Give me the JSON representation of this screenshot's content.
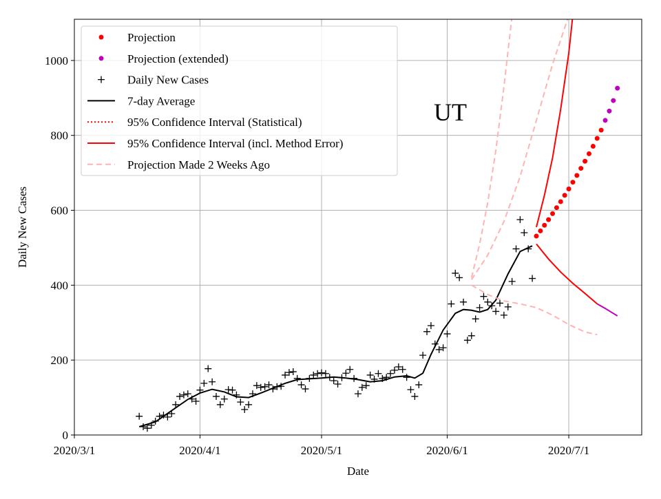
{
  "chart_data": {
    "type": "line",
    "xlabel": "Date",
    "ylabel": "Daily New Cases",
    "annotation": "UT",
    "xlim": [
      "2020-03-01",
      "2020-07-19"
    ],
    "xticks": [
      {
        "value": "2020-03-01",
        "label": "2020/3/1"
      },
      {
        "value": "2020-04-01",
        "label": "2020/4/1"
      },
      {
        "value": "2020-05-01",
        "label": "2020/5/1"
      },
      {
        "value": "2020-06-01",
        "label": "2020/6/1"
      },
      {
        "value": "2020-07-01",
        "label": "2020/7/1"
      }
    ],
    "ylim": [
      0,
      1110
    ],
    "yticks": [
      0,
      200,
      400,
      600,
      800,
      1000
    ],
    "grid": true,
    "legend": "upper left",
    "series": [
      {
        "name": "Projection",
        "color": "#ff0000",
        "marker": "dot",
        "x": [
          "2020-06-23",
          "2020-06-24",
          "2020-06-25",
          "2020-06-26",
          "2020-06-27",
          "2020-06-28",
          "2020-06-29",
          "2020-06-30",
          "2020-07-01",
          "2020-07-02",
          "2020-07-03",
          "2020-07-04",
          "2020-07-05",
          "2020-07-06",
          "2020-07-07",
          "2020-07-08",
          "2020-07-09"
        ],
        "values": [
          531,
          545,
          560,
          575,
          591,
          607,
          623,
          640,
          657,
          675,
          693,
          712,
          731,
          751,
          771,
          792,
          814
        ]
      },
      {
        "name": "Projection (extended)",
        "color": "#bf00bf",
        "marker": "dot",
        "x": [
          "2020-07-10",
          "2020-07-11",
          "2020-07-12",
          "2020-07-13"
        ],
        "values": [
          840,
          865,
          893,
          926
        ],
        "lines": [
          {
            "x": [
              "2020-07-08",
              "2020-07-10",
              "2020-07-13"
            ],
            "values": [
              350,
              338,
              318
            ]
          }
        ]
      },
      {
        "name": "Daily New Cases",
        "color": "#000000",
        "marker": "plus",
        "x": [
          "2020-03-17",
          "2020-03-18",
          "2020-03-19",
          "2020-03-20",
          "2020-03-21",
          "2020-03-22",
          "2020-03-23",
          "2020-03-24",
          "2020-03-25",
          "2020-03-26",
          "2020-03-27",
          "2020-03-28",
          "2020-03-29",
          "2020-03-30",
          "2020-03-31",
          "2020-04-01",
          "2020-04-02",
          "2020-04-03",
          "2020-04-04",
          "2020-04-05",
          "2020-04-06",
          "2020-04-07",
          "2020-04-08",
          "2020-04-09",
          "2020-04-10",
          "2020-04-11",
          "2020-04-12",
          "2020-04-13",
          "2020-04-14",
          "2020-04-15",
          "2020-04-16",
          "2020-04-17",
          "2020-04-18",
          "2020-04-19",
          "2020-04-20",
          "2020-04-21",
          "2020-04-22",
          "2020-04-23",
          "2020-04-24",
          "2020-04-25",
          "2020-04-26",
          "2020-04-27",
          "2020-04-28",
          "2020-04-29",
          "2020-04-30",
          "2020-05-01",
          "2020-05-02",
          "2020-05-03",
          "2020-05-04",
          "2020-05-05",
          "2020-05-06",
          "2020-05-07",
          "2020-05-08",
          "2020-05-09",
          "2020-05-10",
          "2020-05-11",
          "2020-05-12",
          "2020-05-13",
          "2020-05-14",
          "2020-05-15",
          "2020-05-16",
          "2020-05-17",
          "2020-05-18",
          "2020-05-19",
          "2020-05-20",
          "2020-05-21",
          "2020-05-22",
          "2020-05-23",
          "2020-05-24",
          "2020-05-25",
          "2020-05-26",
          "2020-05-27",
          "2020-05-28",
          "2020-05-29",
          "2020-05-30",
          "2020-05-31",
          "2020-06-01",
          "2020-06-02",
          "2020-06-03",
          "2020-06-04",
          "2020-06-05",
          "2020-06-06",
          "2020-06-07",
          "2020-06-08",
          "2020-06-09",
          "2020-06-10",
          "2020-06-11",
          "2020-06-12",
          "2020-06-13",
          "2020-06-14",
          "2020-06-15",
          "2020-06-16",
          "2020-06-17",
          "2020-06-18",
          "2020-06-19",
          "2020-06-20",
          "2020-06-21",
          "2020-06-22"
        ],
        "values": [
          50,
          22,
          18,
          26,
          37,
          50,
          53,
          48,
          57,
          81,
          103,
          107,
          110,
          96,
          90,
          120,
          138,
          177,
          142,
          103,
          81,
          96,
          121,
          120,
          107,
          88,
          68,
          81,
          110,
          132,
          127,
          129,
          134,
          123,
          129,
          130,
          160,
          167,
          169,
          151,
          134,
          123,
          151,
          160,
          164,
          166,
          164,
          154,
          145,
          136,
          153,
          165,
          175,
          151,
          110,
          127,
          132,
          160,
          149,
          164,
          151,
          154,
          164,
          173,
          182,
          175,
          154,
          121,
          103,
          134,
          213,
          276,
          292,
          243,
          228,
          233,
          270,
          350,
          432,
          420,
          355,
          253,
          265,
          310,
          340,
          370,
          355,
          345,
          330,
          352,
          320,
          342,
          410,
          497,
          575,
          540,
          497,
          418
        ]
      },
      {
        "name": "7-day Average",
        "color": "#000000",
        "linestyle": "solid",
        "x": [
          "2020-03-17",
          "2020-03-21",
          "2020-03-25",
          "2020-03-29",
          "2020-04-01",
          "2020-04-04",
          "2020-04-07",
          "2020-04-10",
          "2020-04-13",
          "2020-04-16",
          "2020-04-19",
          "2020-04-22",
          "2020-04-25",
          "2020-04-28",
          "2020-05-01",
          "2020-05-04",
          "2020-05-07",
          "2020-05-10",
          "2020-05-13",
          "2020-05-16",
          "2020-05-19",
          "2020-05-22",
          "2020-05-24",
          "2020-05-26",
          "2020-05-28",
          "2020-05-31",
          "2020-06-03",
          "2020-06-05",
          "2020-06-07",
          "2020-06-09",
          "2020-06-11",
          "2020-06-13",
          "2020-06-16",
          "2020-06-19",
          "2020-06-22"
        ],
        "values": [
          22,
          35,
          65,
          95,
          112,
          122,
          115,
          102,
          100,
          112,
          125,
          138,
          148,
          150,
          152,
          155,
          152,
          148,
          142,
          145,
          155,
          158,
          152,
          165,
          215,
          280,
          325,
          335,
          333,
          328,
          335,
          360,
          430,
          490,
          505
        ]
      },
      {
        "name": "95% Confidence Interval (Statistical)",
        "color": "#ff0000",
        "linestyle": "dotted",
        "lines": []
      },
      {
        "name": "95% Confidence Interval (incl. Method Error)",
        "color": "#ff0000",
        "linestyle": "solid",
        "lines": [
          {
            "x": [
              "2020-06-23",
              "2020-06-25",
              "2020-06-27",
              "2020-06-29",
              "2020-07-01",
              "2020-07-02"
            ],
            "values": [
              555,
              640,
              740,
              870,
              1020,
              1120
            ]
          },
          {
            "x": [
              "2020-06-23",
              "2020-06-26",
              "2020-06-29",
              "2020-07-02",
              "2020-07-05",
              "2020-07-08"
            ],
            "values": [
              510,
              470,
              435,
              405,
              378,
              350
            ]
          }
        ]
      },
      {
        "name": "Projection Made 2 Weeks Ago",
        "color": "#ffb3b3",
        "linestyle": "dashed",
        "lines": [
          {
            "x": [
              "2020-06-07",
              "2020-06-09",
              "2020-06-11",
              "2020-06-13",
              "2020-06-15",
              "2020-06-17"
            ],
            "values": [
              420,
              510,
              620,
              760,
              930,
              1120
            ]
          },
          {
            "x": [
              "2020-06-07",
              "2020-06-11",
              "2020-06-15",
              "2020-06-19",
              "2020-06-23",
              "2020-06-27",
              "2020-07-01"
            ],
            "values": [
              415,
              480,
              570,
              690,
              840,
              990,
              1120
            ]
          },
          {
            "x": [
              "2020-06-07",
              "2020-06-11",
              "2020-06-15",
              "2020-06-19",
              "2020-06-23",
              "2020-06-27",
              "2020-07-01",
              "2020-07-05",
              "2020-07-08"
            ],
            "values": [
              400,
              375,
              358,
              350,
              340,
              320,
              295,
              275,
              268
            ]
          }
        ]
      }
    ]
  }
}
